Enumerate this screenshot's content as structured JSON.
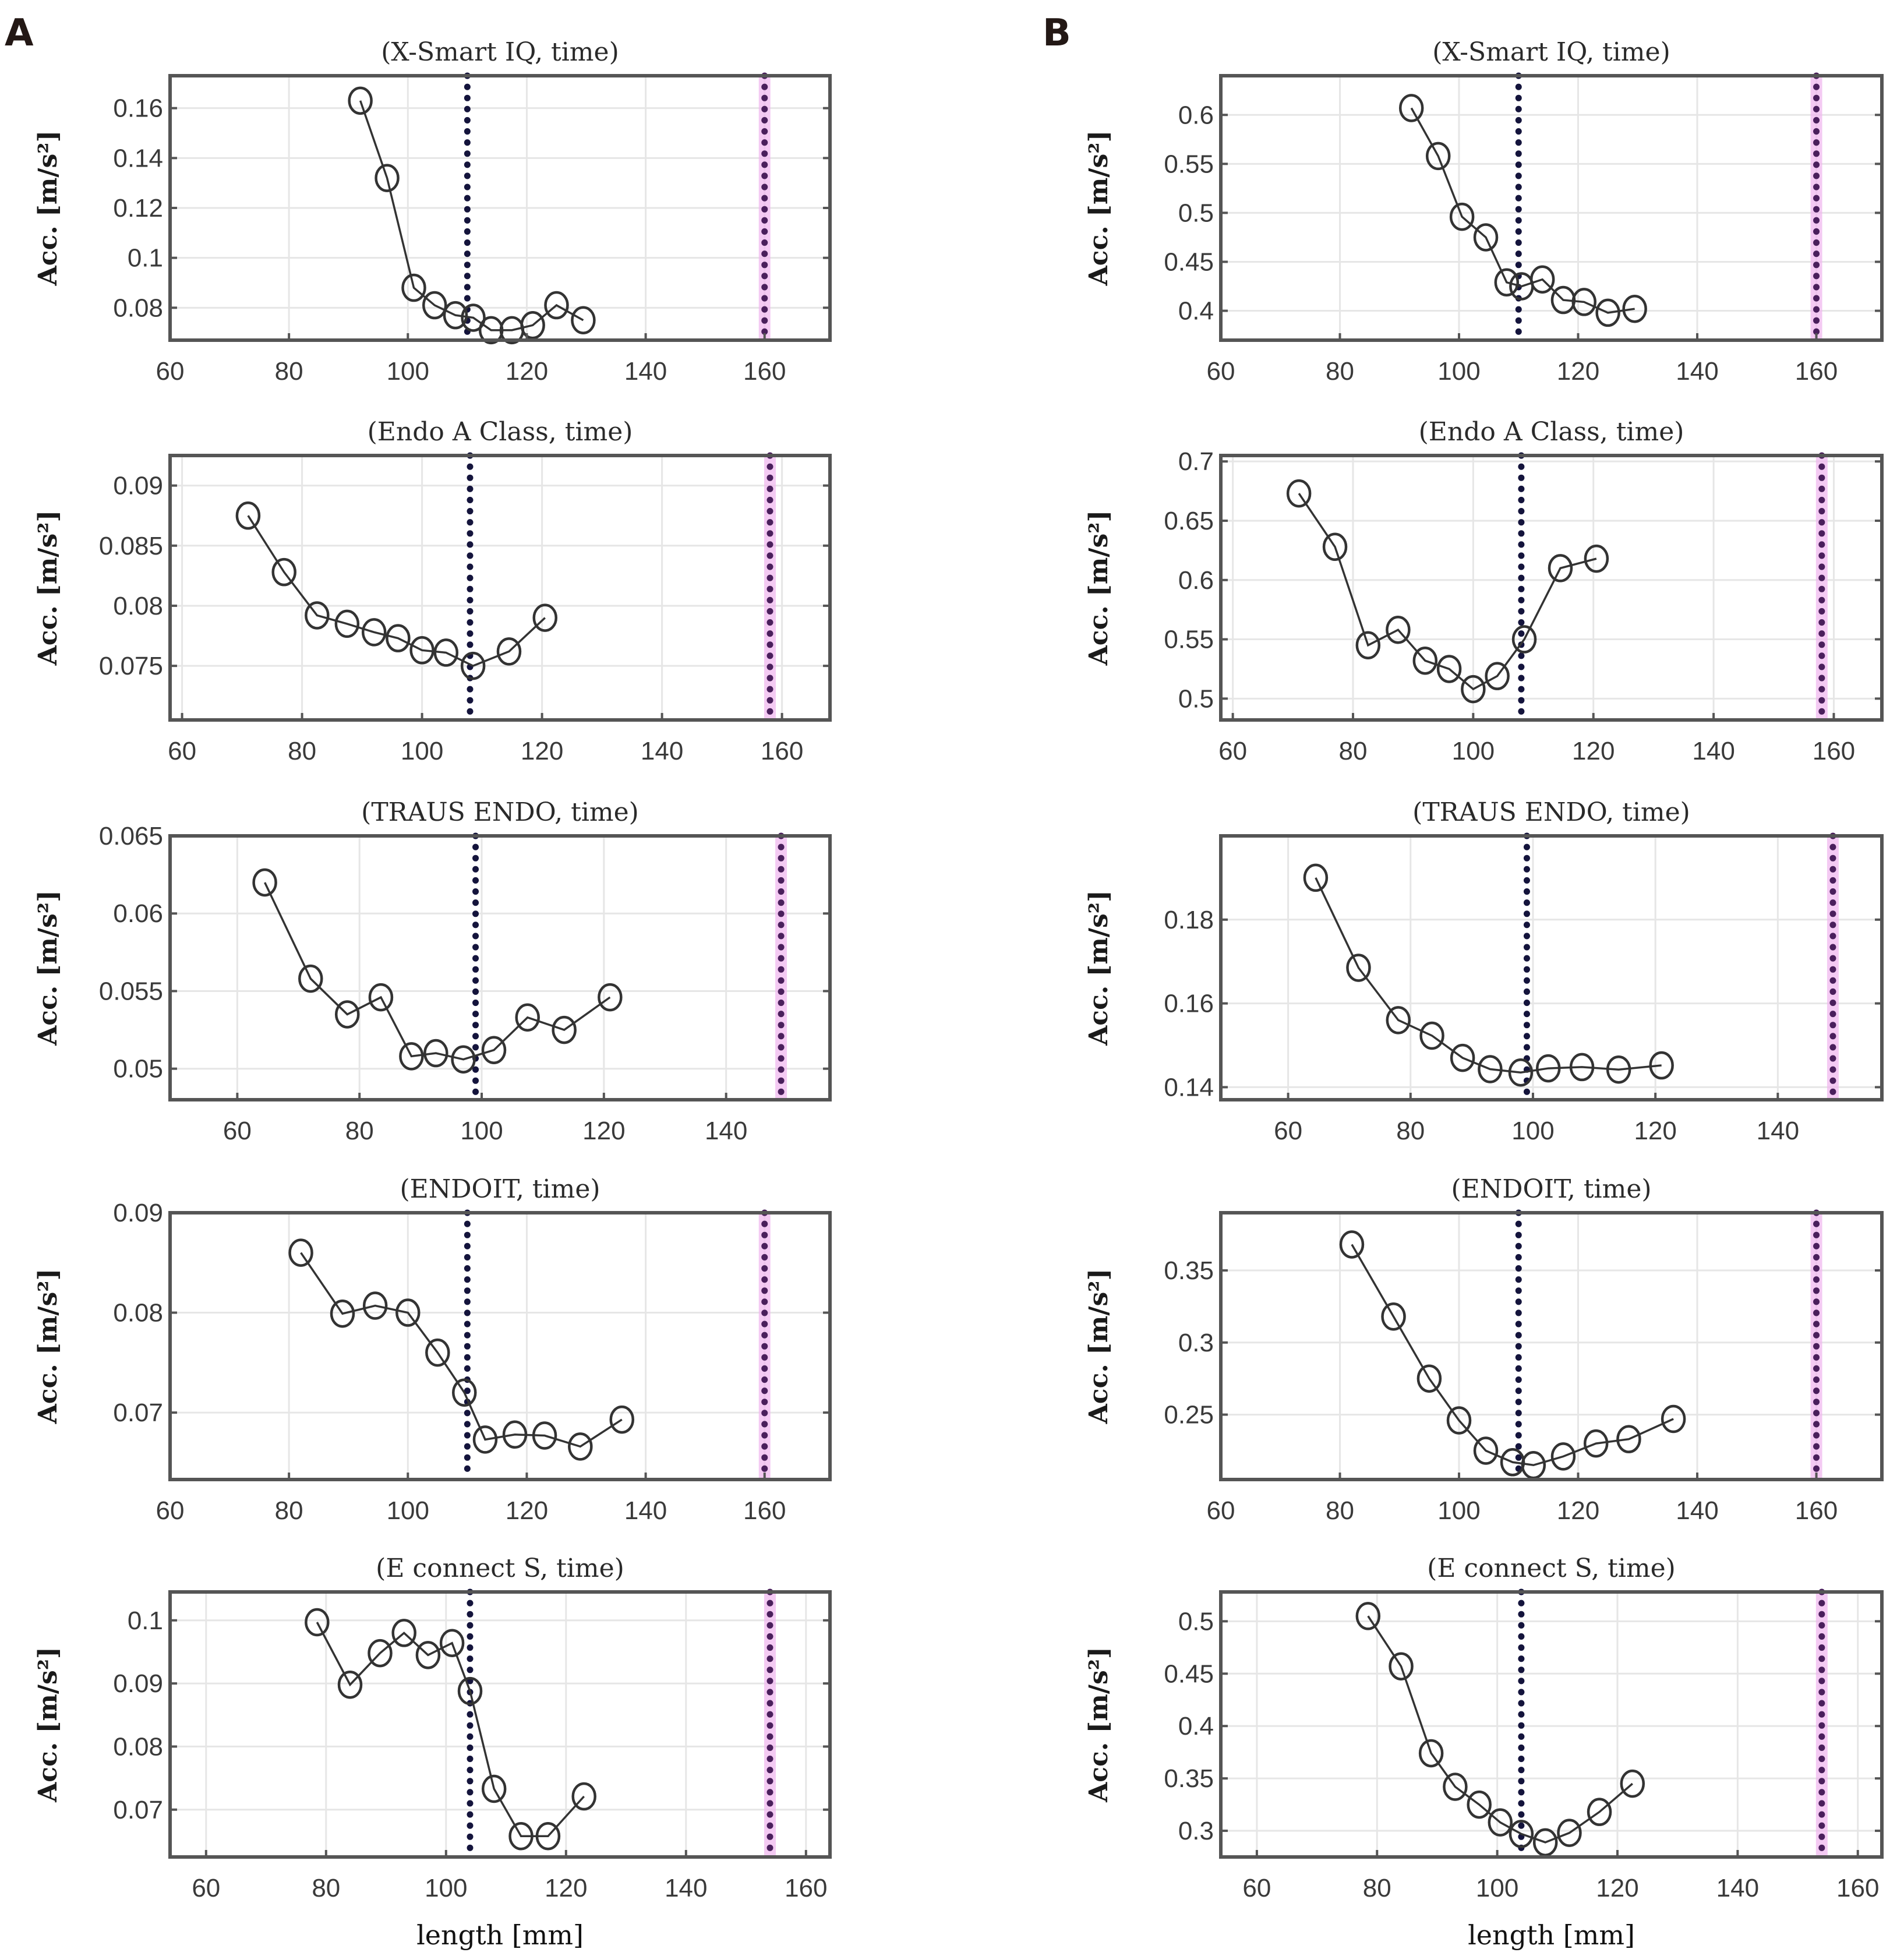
{
  "figure": {
    "panel_labels": [
      "A",
      "B"
    ],
    "colors": {
      "series": "#333333",
      "axes": "#555555",
      "grid": "#e6e6e6",
      "vline_optimal": "#14143c",
      "vline_max": "#4a1f5c",
      "vline_max_glow": "#f0b4ee"
    }
  },
  "chart_data": [
    {
      "id": "A1",
      "column": "A",
      "type": "line",
      "title": "(X-Smart IQ, time)",
      "xlabel": "",
      "ylabel": "Acc. [m/s²]",
      "xlim": [
        60,
        171
      ],
      "ylim": [
        0.067,
        0.173
      ],
      "xticks": [
        60,
        80,
        100,
        120,
        140,
        160
      ],
      "yticks": [
        0.08,
        0.1,
        0.12,
        0.14,
        0.16
      ],
      "ytick_labels": [
        "0.08",
        "0.1",
        "0.12",
        "0.14",
        "0.16"
      ],
      "grid": true,
      "vlines": [
        110,
        160
      ],
      "x": [
        92,
        96.5,
        101,
        104.5,
        108,
        111,
        114,
        117.5,
        121,
        125,
        129.5
      ],
      "y": [
        0.163,
        0.132,
        0.088,
        0.081,
        0.077,
        0.076,
        0.071,
        0.071,
        0.073,
        0.081,
        0.075
      ]
    },
    {
      "id": "B1",
      "column": "B",
      "type": "line",
      "title": "(X-Smart IQ, time)",
      "xlabel": "",
      "ylabel": "Acc. [m/s²]",
      "xlim": [
        60,
        171
      ],
      "ylim": [
        0.37,
        0.64
      ],
      "xticks": [
        60,
        80,
        100,
        120,
        140,
        160
      ],
      "yticks": [
        0.4,
        0.45,
        0.5,
        0.55,
        0.6
      ],
      "ytick_labels": [
        "0.4",
        "0.45",
        "0.5",
        "0.55",
        "0.6"
      ],
      "grid": true,
      "vlines": [
        110,
        160
      ],
      "x": [
        92,
        96.5,
        100.5,
        104.5,
        108,
        110.5,
        114,
        117.5,
        121,
        125,
        129.5
      ],
      "y": [
        0.607,
        0.558,
        0.496,
        0.475,
        0.429,
        0.425,
        0.432,
        0.411,
        0.409,
        0.398,
        0.402
      ]
    },
    {
      "id": "A2",
      "column": "A",
      "type": "line",
      "title": "(Endo A Class, time)",
      "xlabel": "",
      "ylabel": "Acc. [m/s²]",
      "xlim": [
        58,
        168
      ],
      "ylim": [
        0.0705,
        0.0925
      ],
      "xticks": [
        60,
        80,
        100,
        120,
        140,
        160
      ],
      "yticks": [
        0.075,
        0.08,
        0.085,
        0.09
      ],
      "ytick_labels": [
        "0.075",
        "0.08",
        "0.085",
        "0.09"
      ],
      "grid": true,
      "vlines": [
        108,
        158
      ],
      "x": [
        71,
        77,
        82.5,
        87.5,
        92,
        96,
        100,
        104,
        108.5,
        114.5,
        120.5
      ],
      "y": [
        0.0875,
        0.0828,
        0.0792,
        0.0785,
        0.0778,
        0.0773,
        0.0763,
        0.0761,
        0.075,
        0.0762,
        0.079
      ]
    },
    {
      "id": "B2",
      "column": "B",
      "type": "line",
      "title": "(Endo A Class, time)",
      "xlabel": "",
      "ylabel": "Acc. [m/s²]",
      "xlim": [
        58,
        168
      ],
      "ylim": [
        0.482,
        0.705
      ],
      "xticks": [
        60,
        80,
        100,
        120,
        140,
        160
      ],
      "yticks": [
        0.5,
        0.55,
        0.6,
        0.65,
        0.7
      ],
      "ytick_labels": [
        "0.5",
        "0.55",
        "0.6",
        "0.65",
        "0.7"
      ],
      "grid": true,
      "vlines": [
        108,
        158
      ],
      "x": [
        71,
        77,
        82.5,
        87.5,
        92,
        96,
        100,
        104,
        108.5,
        114.5,
        120.5
      ],
      "y": [
        0.673,
        0.628,
        0.545,
        0.558,
        0.532,
        0.525,
        0.508,
        0.519,
        0.55,
        0.61,
        0.618
      ]
    },
    {
      "id": "A3",
      "column": "A",
      "type": "line",
      "title": "(TRAUS ENDO, time)",
      "xlabel": "",
      "ylabel": "Acc. [m/s²]",
      "xlim": [
        49,
        157
      ],
      "ylim": [
        0.048,
        0.065
      ],
      "xticks": [
        60,
        80,
        100,
        120,
        140
      ],
      "yticks": [
        0.05,
        0.055,
        0.06,
        0.065
      ],
      "ytick_labels": [
        "0.05",
        "0.055",
        "0.06",
        "0.065"
      ],
      "grid": true,
      "vlines": [
        99,
        149
      ],
      "x": [
        64.5,
        72,
        78,
        83.5,
        88.5,
        92.5,
        97,
        102,
        107.5,
        113.5,
        121
      ],
      "y": [
        0.062,
        0.0558,
        0.0535,
        0.0546,
        0.0508,
        0.051,
        0.0506,
        0.0512,
        0.0533,
        0.0525,
        0.0546
      ]
    },
    {
      "id": "B3",
      "column": "B",
      "type": "line",
      "title": "(TRAUS ENDO, time)",
      "xlabel": "",
      "ylabel": "Acc. [m/s²]",
      "xlim": [
        49,
        157
      ],
      "ylim": [
        0.137,
        0.2
      ],
      "xticks": [
        60,
        80,
        100,
        120,
        140
      ],
      "yticks": [
        0.14,
        0.16,
        0.18
      ],
      "ytick_labels": [
        "0.14",
        "0.16",
        "0.18"
      ],
      "grid": true,
      "vlines": [
        99,
        149
      ],
      "x": [
        64.5,
        71.5,
        78,
        83.5,
        88.5,
        93,
        98,
        102.5,
        108,
        114,
        121
      ],
      "y": [
        0.19,
        0.1685,
        0.156,
        0.1523,
        0.147,
        0.1443,
        0.1435,
        0.1445,
        0.1448,
        0.1442,
        0.1452
      ]
    },
    {
      "id": "A4",
      "column": "A",
      "type": "line",
      "title": "(ENDOIT, time)",
      "xlabel": "",
      "ylabel": "Acc. [m/s²]",
      "xlim": [
        60,
        171
      ],
      "ylim": [
        0.0633,
        0.09
      ],
      "xticks": [
        60,
        80,
        100,
        120,
        140,
        160
      ],
      "yticks": [
        0.07,
        0.08,
        0.09
      ],
      "ytick_labels": [
        "0.07",
        "0.08",
        "0.09"
      ],
      "grid": true,
      "vlines": [
        110,
        160
      ],
      "x": [
        82,
        89,
        94.5,
        100,
        105,
        109.5,
        113,
        118,
        123,
        129,
        136
      ],
      "y": [
        0.086,
        0.0799,
        0.0807,
        0.08,
        0.076,
        0.072,
        0.0673,
        0.0678,
        0.0677,
        0.0666,
        0.0693
      ]
    },
    {
      "id": "B4",
      "column": "B",
      "type": "line",
      "title": "(ENDOIT, time)",
      "xlabel": "",
      "ylabel": "Acc. [m/s²]",
      "xlim": [
        60,
        171
      ],
      "ylim": [
        0.205,
        0.39
      ],
      "xticks": [
        60,
        80,
        100,
        120,
        140,
        160
      ],
      "yticks": [
        0.25,
        0.3,
        0.35
      ],
      "ytick_labels": [
        "0.25",
        "0.3",
        "0.35"
      ],
      "grid": true,
      "vlines": [
        110,
        160
      ],
      "x": [
        82,
        89,
        95,
        100,
        104.5,
        109,
        112.5,
        117.5,
        123,
        128.5,
        136
      ],
      "y": [
        0.368,
        0.318,
        0.275,
        0.246,
        0.225,
        0.217,
        0.215,
        0.221,
        0.23,
        0.233,
        0.247
      ]
    },
    {
      "id": "A5",
      "column": "A",
      "type": "line",
      "title": "(E connect S, time)",
      "xlabel": "length [mm]",
      "ylabel": "Acc. [m/s²]",
      "xlim": [
        54,
        164
      ],
      "ylim": [
        0.0625,
        0.1045
      ],
      "xticks": [
        60,
        80,
        100,
        120,
        140,
        160
      ],
      "yticks": [
        0.07,
        0.08,
        0.09,
        0.1
      ],
      "ytick_labels": [
        "0.07",
        "0.08",
        "0.09",
        "0.1"
      ],
      "grid": true,
      "vlines": [
        104,
        154
      ],
      "x": [
        78.5,
        84,
        89,
        93,
        97,
        101,
        104,
        108,
        112.5,
        117,
        123
      ],
      "y": [
        0.0997,
        0.0898,
        0.0948,
        0.098,
        0.0945,
        0.0964,
        0.0888,
        0.0733,
        0.0658,
        0.0658,
        0.0721
      ]
    },
    {
      "id": "B5",
      "column": "B",
      "type": "line",
      "title": "(E connect S, time)",
      "xlabel": "length [mm]",
      "ylabel": "Acc. [m/s²]",
      "xlim": [
        54,
        164
      ],
      "ylim": [
        0.275,
        0.528
      ],
      "xticks": [
        60,
        80,
        100,
        120,
        140,
        160
      ],
      "yticks": [
        0.3,
        0.35,
        0.4,
        0.45,
        0.5
      ],
      "ytick_labels": [
        "0.3",
        "0.35",
        "0.4",
        "0.45",
        "0.5"
      ],
      "grid": true,
      "vlines": [
        104,
        154
      ],
      "x": [
        78.5,
        84,
        89,
        93,
        97,
        100.5,
        104,
        108,
        112,
        117,
        122.5
      ],
      "y": [
        0.505,
        0.457,
        0.374,
        0.342,
        0.325,
        0.308,
        0.297,
        0.289,
        0.298,
        0.318,
        0.345
      ]
    }
  ]
}
